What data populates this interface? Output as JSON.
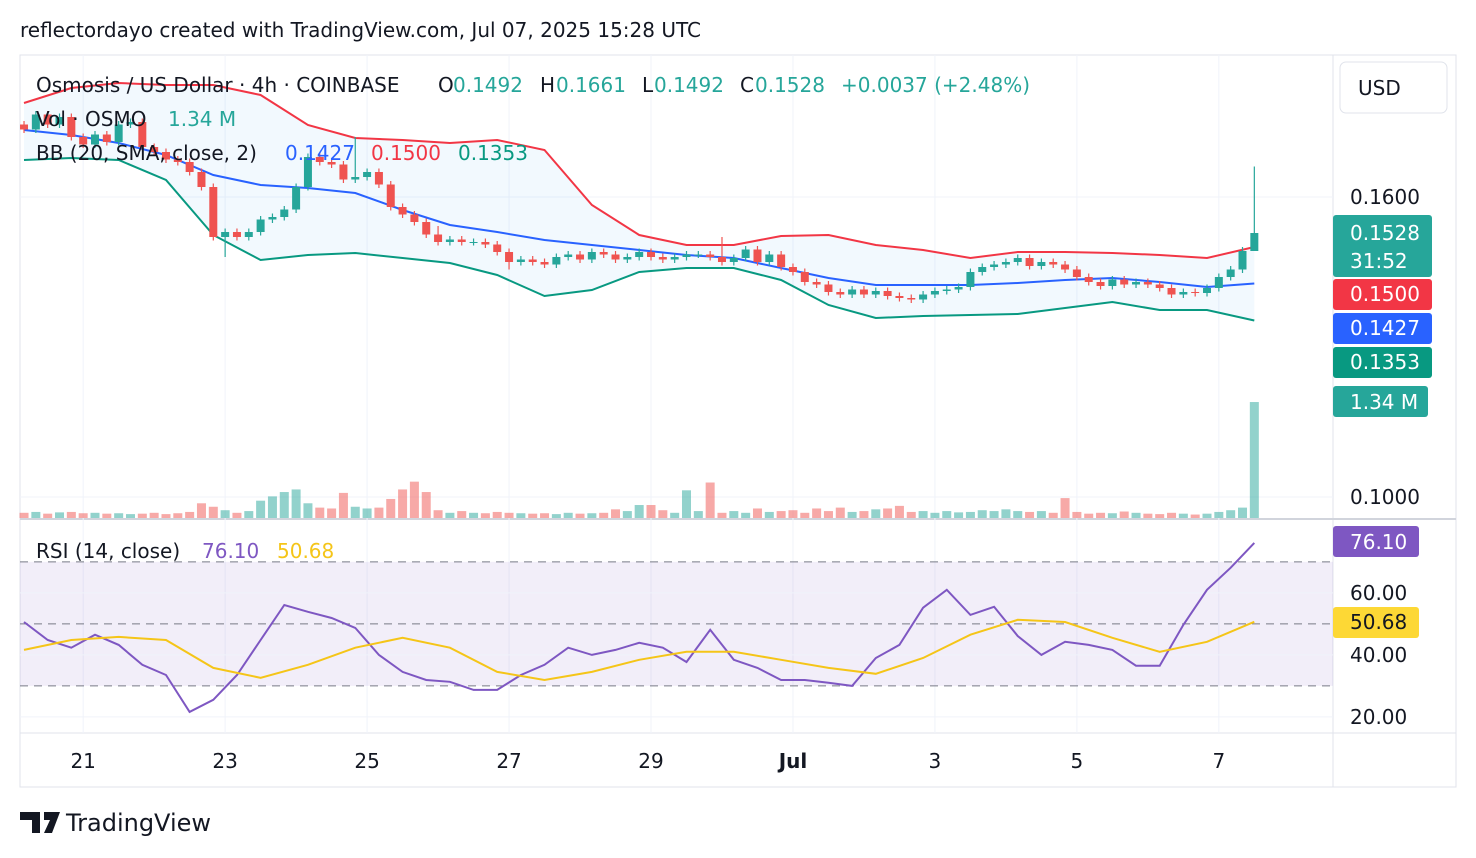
{
  "header": "reflectordayo created with TradingView.com, Jul 07, 2025 15:28 UTC",
  "currency": "USD",
  "footer": "TradingView",
  "chart_data": [
    {
      "type": "candlestick",
      "title": "Osmosis / US Dollar · 4h · COINBASE",
      "legend": [
        {
          "key": "O",
          "value": "0.1492"
        },
        {
          "key": "H",
          "value": "0.1661"
        },
        {
          "key": "L",
          "value": "0.1492"
        },
        {
          "key": "C",
          "value": "0.1528"
        }
      ],
      "change": "+0.0037 (+2.48%)",
      "countdown": "31:52",
      "up_color": "#26a69a",
      "down_color": "#ef5350",
      "xlim": [
        -0.34,
        110.65
      ],
      "xticks": [
        {
          "value": 5,
          "label": "21"
        },
        {
          "value": 17,
          "label": "23"
        },
        {
          "value": 29,
          "label": "25"
        },
        {
          "value": 41,
          "label": "27"
        },
        {
          "value": 53,
          "label": "29"
        },
        {
          "value": 65,
          "label": "Jul"
        },
        {
          "value": 77,
          "label": "3"
        },
        {
          "value": 89,
          "label": "5"
        },
        {
          "value": 101,
          "label": "7"
        }
      ],
      "ylim": [
        0.0958,
        0.1884
      ],
      "yticks": [
        {
          "value": 0.16,
          "label": "0.1600"
        },
        {
          "value": 0.1,
          "label": "0.1000"
        }
      ],
      "grid": true,
      "candles": {
        "open": [
          0.1745,
          0.1735,
          0.1765,
          0.1745,
          0.176,
          0.172,
          0.1705,
          0.1725,
          0.171,
          0.1745,
          0.175,
          0.17,
          0.169,
          0.1675,
          0.167,
          0.165,
          0.162,
          0.152,
          0.153,
          0.152,
          0.153,
          0.1555,
          0.156,
          0.1575,
          0.162,
          0.168,
          0.167,
          0.1665,
          0.1635,
          0.164,
          0.165,
          0.1625,
          0.158,
          0.1565,
          0.155,
          0.1525,
          0.151,
          0.1515,
          0.151,
          0.151,
          0.1505,
          0.149,
          0.147,
          0.1475,
          0.147,
          0.1465,
          0.148,
          0.1485,
          0.1475,
          0.149,
          0.1485,
          0.1475,
          0.148,
          0.149,
          0.148,
          0.1475,
          0.148,
          0.1485,
          0.1485,
          0.148,
          0.147,
          0.1478,
          0.1495,
          0.147,
          0.1485,
          0.146,
          0.145,
          0.143,
          0.1425,
          0.141,
          0.1405,
          0.1415,
          0.1405,
          0.1412,
          0.1402,
          0.1398,
          0.1395,
          0.1405,
          0.1412,
          0.1415,
          0.142,
          0.145,
          0.146,
          0.1465,
          0.147,
          0.1478,
          0.1462,
          0.147,
          0.1465,
          0.1455,
          0.144,
          0.143,
          0.1422,
          0.1435,
          0.1425,
          0.143,
          0.1425,
          0.1418,
          0.1405,
          0.141,
          0.1408,
          0.1418,
          0.144,
          0.1455,
          0.1492
        ],
        "high": [
          0.1752,
          0.1772,
          0.1772,
          0.1767,
          0.1767,
          0.1727,
          0.1732,
          0.1732,
          0.1752,
          0.1757,
          0.1757,
          0.1707,
          0.1697,
          0.1682,
          0.1677,
          0.1657,
          0.1627,
          0.1537,
          0.1537,
          0.1537,
          0.1562,
          0.1567,
          0.1582,
          0.1627,
          0.1687,
          0.1687,
          0.1677,
          0.1672,
          0.172,
          0.1657,
          0.1657,
          0.1632,
          0.1587,
          0.1572,
          0.1557,
          0.1542,
          0.1522,
          0.1522,
          0.1517,
          0.1517,
          0.1512,
          0.1497,
          0.1482,
          0.1482,
          0.1477,
          0.1487,
          0.1492,
          0.1492,
          0.1497,
          0.1497,
          0.1492,
          0.1487,
          0.1497,
          0.1497,
          0.1487,
          0.1487,
          0.1492,
          0.1492,
          0.1492,
          0.152,
          0.1485,
          0.1502,
          0.1502,
          0.1492,
          0.1492,
          0.1467,
          0.1457,
          0.1437,
          0.1432,
          0.1417,
          0.1422,
          0.1422,
          0.1419,
          0.1419,
          0.1409,
          0.1405,
          0.1412,
          0.1419,
          0.1422,
          0.1427,
          0.1457,
          0.1467,
          0.1472,
          0.1477,
          0.1485,
          0.1485,
          0.1477,
          0.1477,
          0.1472,
          0.1462,
          0.1447,
          0.1437,
          0.1442,
          0.1442,
          0.1437,
          0.1437,
          0.1432,
          0.1425,
          0.1417,
          0.1417,
          0.1425,
          0.1447,
          0.1462,
          0.15,
          0.1661
        ],
        "low": [
          0.1728,
          0.1728,
          0.1738,
          0.1738,
          0.1713,
          0.1698,
          0.1698,
          0.1703,
          0.1703,
          0.1738,
          0.1693,
          0.1683,
          0.1668,
          0.1663,
          0.1643,
          0.1613,
          0.1513,
          0.148,
          0.1513,
          0.1513,
          0.1523,
          0.1548,
          0.1553,
          0.1568,
          0.1613,
          0.1663,
          0.1658,
          0.1628,
          0.1628,
          0.1633,
          0.1618,
          0.1573,
          0.1558,
          0.1543,
          0.1518,
          0.1503,
          0.1503,
          0.1503,
          0.1503,
          0.1498,
          0.1483,
          0.1455,
          0.1463,
          0.1463,
          0.1458,
          0.1458,
          0.1473,
          0.1468,
          0.1468,
          0.1478,
          0.1468,
          0.1468,
          0.1473,
          0.1473,
          0.1468,
          0.1468,
          0.1473,
          0.1478,
          0.1473,
          0.1463,
          0.1463,
          0.1471,
          0.1463,
          0.1463,
          0.1453,
          0.1443,
          0.1423,
          0.1418,
          0.1403,
          0.1398,
          0.1398,
          0.1398,
          0.1398,
          0.1395,
          0.1391,
          0.1388,
          0.1388,
          0.1398,
          0.1405,
          0.1408,
          0.1413,
          0.1443,
          0.1453,
          0.1458,
          0.1463,
          0.1455,
          0.1455,
          0.1458,
          0.1448,
          0.1433,
          0.1423,
          0.1415,
          0.1415,
          0.1418,
          0.1418,
          0.1418,
          0.1411,
          0.1398,
          0.1398,
          0.1401,
          0.1401,
          0.1411,
          0.1433,
          0.1448,
          0.1492
        ],
        "close": [
          0.1735,
          0.1765,
          0.1745,
          0.176,
          0.172,
          0.1705,
          0.1725,
          0.171,
          0.1745,
          0.175,
          0.17,
          0.169,
          0.1675,
          0.167,
          0.165,
          0.162,
          0.152,
          0.153,
          0.152,
          0.153,
          0.1555,
          0.156,
          0.1575,
          0.162,
          0.168,
          0.167,
          0.1665,
          0.1635,
          0.164,
          0.165,
          0.1625,
          0.158,
          0.1565,
          0.155,
          0.1525,
          0.151,
          0.1515,
          0.151,
          0.151,
          0.1505,
          0.149,
          0.147,
          0.1475,
          0.147,
          0.1465,
          0.148,
          0.1485,
          0.1475,
          0.149,
          0.1485,
          0.1475,
          0.148,
          0.149,
          0.148,
          0.1475,
          0.148,
          0.1485,
          0.1485,
          0.148,
          0.147,
          0.1478,
          0.1495,
          0.147,
          0.1485,
          0.146,
          0.145,
          0.143,
          0.1425,
          0.141,
          0.1405,
          0.1415,
          0.1405,
          0.1412,
          0.1402,
          0.1398,
          0.1395,
          0.1405,
          0.1412,
          0.1415,
          0.142,
          0.145,
          0.146,
          0.1465,
          0.147,
          0.1478,
          0.1462,
          0.147,
          0.1465,
          0.1455,
          0.144,
          0.143,
          0.1422,
          0.1435,
          0.1425,
          0.143,
          0.1425,
          0.1418,
          0.1405,
          0.141,
          0.1408,
          0.1418,
          0.144,
          0.1455,
          0.1492,
          0.1528
        ]
      },
      "volume": {
        "name": "Vol · OSMO",
        "value_label": "1.34 M",
        "ylim": [
          0,
          5350000
        ],
        "values": [
          60000,
          70000,
          50000,
          65000,
          70000,
          55000,
          60000,
          50000,
          55000,
          45000,
          50000,
          60000,
          45000,
          55000,
          70000,
          170000,
          130000,
          90000,
          60000,
          80000,
          200000,
          250000,
          300000,
          330000,
          170000,
          120000,
          110000,
          290000,
          130000,
          110000,
          120000,
          220000,
          330000,
          420000,
          300000,
          90000,
          60000,
          80000,
          60000,
          55000,
          70000,
          60000,
          55000,
          50000,
          55000,
          45000,
          60000,
          50000,
          55000,
          60000,
          100000,
          80000,
          150000,
          150000,
          90000,
          60000,
          320000,
          80000,
          410000,
          60000,
          80000,
          60000,
          110000,
          70000,
          80000,
          90000,
          60000,
          110000,
          80000,
          120000,
          70000,
          80000,
          100000,
          110000,
          140000,
          70000,
          80000,
          60000,
          80000,
          65000,
          70000,
          90000,
          80000,
          100000,
          80000,
          70000,
          80000,
          60000,
          230000,
          70000,
          50000,
          60000,
          55000,
          75000,
          60000,
          50000,
          45000,
          60000,
          50000,
          40000,
          50000,
          70000,
          90000,
          120000,
          1340000
        ]
      },
      "bollinger": {
        "name": "BB (20, SMA, close, 2)",
        "x": [
          0,
          4,
          8,
          12,
          16,
          20,
          24,
          28,
          32,
          36,
          40,
          44,
          48,
          52,
          56,
          60,
          64,
          68,
          72,
          76,
          80,
          84,
          88,
          92,
          96,
          100,
          104
        ],
        "upper": {
          "color": "#f23645",
          "value_label": "0.1500",
          "values": [
            0.1788,
            0.1818,
            0.1828,
            0.1824,
            0.1824,
            0.1804,
            0.1744,
            0.1718,
            0.1714,
            0.1708,
            0.1714,
            0.1694,
            0.1584,
            0.1524,
            0.1504,
            0.1504,
            0.1522,
            0.1524,
            0.1504,
            0.1494,
            0.1478,
            0.149,
            0.149,
            0.1488,
            0.1484,
            0.1478,
            0.15
          ]
        },
        "middle": {
          "color": "#2962ff",
          "value_label": "0.1427",
          "values": [
            0.1734,
            0.1724,
            0.1708,
            0.1684,
            0.1644,
            0.1624,
            0.1618,
            0.1608,
            0.1574,
            0.1544,
            0.153,
            0.1514,
            0.1504,
            0.1494,
            0.1484,
            0.1478,
            0.1458,
            0.1438,
            0.1424,
            0.1424,
            0.1424,
            0.1428,
            0.1434,
            0.1438,
            0.143,
            0.142,
            0.1427
          ]
        },
        "lower": {
          "color": "#089981",
          "value_label": "0.1353",
          "values": [
            0.1674,
            0.1678,
            0.1674,
            0.1634,
            0.1524,
            0.1474,
            0.1484,
            0.1488,
            0.1478,
            0.1468,
            0.1444,
            0.1402,
            0.1414,
            0.145,
            0.1458,
            0.1458,
            0.1434,
            0.1384,
            0.1358,
            0.1362,
            0.1364,
            0.1366,
            0.1378,
            0.139,
            0.1374,
            0.1374,
            0.1353
          ]
        },
        "fill_color": "#2196f3"
      }
    },
    {
      "type": "line",
      "title": "RSI (14, close)",
      "xlim": [
        -0.34,
        110.65
      ],
      "ylim": [
        14.8,
        83.5
      ],
      "yticks": [
        {
          "value": 60,
          "label": "60.00"
        },
        {
          "value": 40,
          "label": "40.00"
        },
        {
          "value": 20,
          "label": "20.00"
        }
      ],
      "levels": [
        70,
        50,
        30
      ],
      "band_color": "#7e57c2",
      "series": [
        {
          "color": "#7e57c2",
          "value_label": "76.10",
          "x": [
            0,
            2,
            4,
            6,
            8,
            10,
            12,
            14,
            16,
            18,
            20,
            22,
            24,
            26,
            28,
            30,
            32,
            34,
            36,
            38,
            40,
            42,
            44,
            46,
            48,
            50,
            52,
            54,
            56,
            58,
            60,
            62,
            64,
            66,
            68,
            70,
            72,
            74,
            76,
            78,
            80,
            82,
            84,
            86,
            88,
            90,
            92,
            94,
            96,
            98,
            100,
            102,
            104
          ],
          "values": [
            50.6,
            44.8,
            42.3,
            46.5,
            43.2,
            36.8,
            33.5,
            21.6,
            25.5,
            33.5,
            44.8,
            56.1,
            53.9,
            51.9,
            48.7,
            40,
            34.5,
            31.9,
            31.3,
            28.7,
            28.7,
            33.5,
            36.8,
            42.3,
            40,
            41.6,
            43.9,
            42.3,
            37.7,
            48.1,
            38.4,
            35.8,
            31.9,
            31.9,
            31,
            30,
            39,
            43.2,
            55.2,
            61,
            52.9,
            55.5,
            46.1,
            40,
            44.2,
            43.2,
            41.6,
            36.5,
            36.5,
            49.7,
            61,
            68.1,
            76.1
          ]
        },
        {
          "color": "#f5c518",
          "value_label": "50.68",
          "x": [
            0,
            4,
            8,
            12,
            16,
            20,
            24,
            28,
            32,
            36,
            40,
            44,
            48,
            52,
            56,
            60,
            64,
            68,
            72,
            76,
            80,
            84,
            88,
            92,
            96,
            100,
            104
          ],
          "values": [
            41.6,
            44.8,
            45.8,
            44.8,
            35.8,
            32.6,
            36.8,
            42.3,
            45.5,
            42.3,
            34.5,
            31.9,
            34.5,
            38.4,
            41,
            41,
            38.4,
            35.8,
            33.9,
            39,
            46.5,
            51.3,
            50.6,
            45.5,
            41,
            44.2,
            50.68
          ]
        }
      ]
    }
  ]
}
